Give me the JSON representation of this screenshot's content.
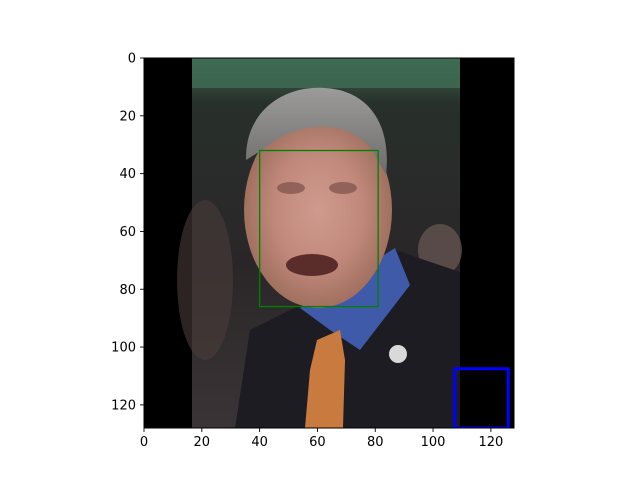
{
  "chart_data": {
    "type": "image",
    "xlim": [
      0,
      128
    ],
    "ylim": [
      128,
      0
    ],
    "x_ticks": [
      0,
      20,
      40,
      60,
      80,
      100,
      120
    ],
    "y_ticks": [
      0,
      20,
      40,
      60,
      80,
      100,
      120
    ],
    "x_tick_labels": [
      "0",
      "20",
      "40",
      "60",
      "80",
      "100",
      "120"
    ],
    "y_tick_labels": [
      "0",
      "20",
      "40",
      "60",
      "80",
      "100",
      "120"
    ],
    "image": {
      "description_region": "photo occupies x 16 to 109, padding is black outside",
      "photo_x_range": [
        16,
        109
      ],
      "padding_color": "#000000"
    },
    "boxes": [
      {
        "x0": 40,
        "y0": 32,
        "x1": 81,
        "y1": 86,
        "color": "#008000"
      },
      {
        "x0": 107.5,
        "y0": 107.5,
        "x1": 126,
        "y1": 128,
        "color": "#0000ff"
      }
    ]
  }
}
